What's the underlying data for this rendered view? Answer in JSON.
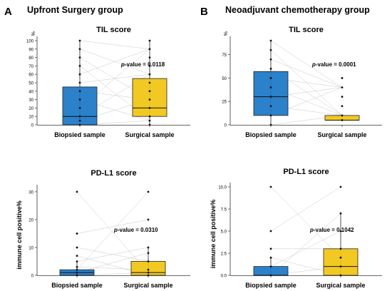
{
  "panels": {
    "a": {
      "letter": "A",
      "group_title": "Upfront Surgery group"
    },
    "b": {
      "letter": "B",
      "group_title": "Neoadjuvant chemotherapy group"
    }
  },
  "colors": {
    "biopsied": "#1976c6",
    "surgical": "#f1c40f",
    "pairline": "#c8c8c8"
  },
  "chart_data": [
    {
      "id": "a-til",
      "type": "box",
      "title": "TIL score",
      "ylabel": "",
      "unit_label": "%",
      "categories": [
        "Biopsied sample",
        "Surgical sample"
      ],
      "ylim": [
        0,
        100
      ],
      "yticks": [
        0,
        10,
        20,
        30,
        40,
        50,
        60,
        70,
        80,
        90,
        100
      ],
      "annotation": {
        "prefix": "p",
        "text": "-value = 0.0118"
      },
      "boxes": [
        {
          "q1": 0,
          "median": 10,
          "q3": 45,
          "whisker_low": 0,
          "whisker_high": 100
        },
        {
          "q1": 10,
          "median": 20,
          "q3": 55,
          "whisker_low": 0,
          "whisker_high": 100
        }
      ],
      "points": [
        [
          0,
          5,
          10,
          20,
          30,
          40,
          50,
          60,
          70,
          80,
          90,
          100
        ],
        [
          0,
          5,
          10,
          20,
          30,
          40,
          50,
          60,
          70,
          80,
          90,
          100
        ]
      ]
    },
    {
      "id": "b-til",
      "type": "box",
      "title": "TIL score",
      "ylabel": "",
      "unit_label": "%",
      "categories": [
        "Biopsied sample",
        "Surgical sample"
      ],
      "ylim": [
        0,
        90
      ],
      "yticks": [
        0,
        25,
        50,
        75
      ],
      "annotation": {
        "prefix": "p",
        "text": "-value = 0.0001"
      },
      "boxes": [
        {
          "q1": 10,
          "median": 30,
          "q3": 57,
          "whisker_low": 0,
          "whisker_high": 90
        },
        {
          "q1": 5,
          "median": 5,
          "q3": 10,
          "whisker_low": 5,
          "whisker_high": 10
        }
      ],
      "points": [
        [
          0,
          10,
          20,
          30,
          40,
          50,
          60,
          70,
          80,
          90
        ],
        [
          5,
          10,
          20,
          30,
          40,
          50
        ]
      ]
    },
    {
      "id": "a-pdl1",
      "type": "box",
      "title": "PD-L1 score",
      "ylabel": "immune cell positive%",
      "unit_label": "",
      "categories": [
        "Biopsied sample",
        "Surgical sample"
      ],
      "ylim": [
        0,
        31
      ],
      "yticks": [
        0,
        10,
        20,
        30
      ],
      "annotation": {
        "prefix": "p",
        "text": "-value = 0.0310"
      },
      "boxes": [
        {
          "q1": 0,
          "median": 1,
          "q3": 2,
          "whisker_low": 0,
          "whisker_high": 5
        },
        {
          "q1": 0,
          "median": 1,
          "q3": 5,
          "whisker_low": 0,
          "whisker_high": 10
        }
      ],
      "points": [
        [
          0,
          1,
          2,
          3,
          5,
          7,
          10,
          15,
          30
        ],
        [
          0,
          1,
          2,
          5,
          8,
          10,
          20,
          30
        ]
      ]
    },
    {
      "id": "b-pdl1",
      "type": "box",
      "title": "PD-L1 score",
      "ylabel": "immune cell positive%",
      "unit_label": "",
      "categories": [
        "Biopsied sample",
        "Surgical sample"
      ],
      "ylim": [
        0,
        10
      ],
      "yticks": [
        0.0,
        2.5,
        5.0,
        7.5,
        10.0
      ],
      "annotation": {
        "prefix": "p",
        "text": "-value = 0.1042"
      },
      "boxes": [
        {
          "q1": 0,
          "median": 0,
          "q3": 1,
          "whisker_low": 0,
          "whisker_high": 2
        },
        {
          "q1": 0,
          "median": 1,
          "q3": 3,
          "whisker_low": 0,
          "whisker_high": 7
        }
      ],
      "points": [
        [
          0,
          1,
          2,
          3,
          5,
          10
        ],
        [
          0,
          1,
          2,
          3,
          5,
          7,
          10
        ]
      ]
    }
  ]
}
